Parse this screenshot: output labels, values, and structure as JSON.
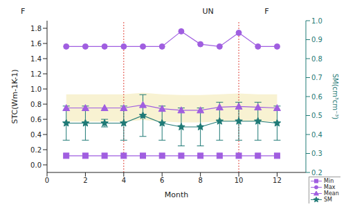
{
  "chart_data": {
    "type": "line",
    "x_label": "Month",
    "y_label": "STC(Wm-1K-1)",
    "y2_label": "SM(cm³cm⁻³)",
    "annotations": [
      "F",
      "UN",
      "F"
    ],
    "x": [
      1,
      2,
      3,
      4,
      5,
      6,
      7,
      8,
      9,
      10,
      11,
      12
    ],
    "xlim": [
      0,
      13.5
    ],
    "xticks": [
      0,
      2,
      4,
      6,
      8,
      10,
      12
    ],
    "ylim": [
      -0.1,
      1.9
    ],
    "yticks": [
      {
        "value": 0,
        "label": "0.0"
      },
      0.2,
      0.4,
      0.6,
      0.8,
      {
        "value": 1,
        "label": "1.0"
      },
      1.2,
      1.4,
      1.6,
      1.8
    ],
    "y2lim": [
      0.2,
      1.0
    ],
    "y2ticks": [
      0.2,
      0.3,
      0.4,
      0.5,
      0.6,
      0.7,
      0.8,
      0.9,
      {
        "value": 1,
        "label": "1.0"
      }
    ],
    "grid": false,
    "legend": "bottom right",
    "vlines": {
      "x": [
        4,
        10
      ],
      "color": "#e0453c",
      "line_style": "dotted"
    },
    "series": [
      {
        "name": "Min",
        "color": "#a05ee0",
        "marker": "square",
        "values": [
          0.12,
          0.12,
          0.12,
          0.12,
          0.12,
          0.12,
          0.12,
          0.12,
          0.12,
          0.12,
          0.12,
          0.12
        ]
      },
      {
        "name": "Max",
        "color": "#a05ee0",
        "marker": "circle",
        "values": [
          1.56,
          1.56,
          1.56,
          1.56,
          1.56,
          1.56,
          1.76,
          1.59,
          1.56,
          1.74,
          1.56,
          1.56
        ]
      },
      {
        "name": "Mean",
        "color": "#a05ee0",
        "marker": "triangle",
        "values": [
          0.75,
          0.75,
          0.75,
          0.75,
          0.79,
          0.74,
          0.72,
          0.72,
          0.76,
          0.77,
          0.76,
          0.75
        ],
        "band_lower": [
          0.57,
          0.57,
          0.57,
          0.57,
          0.59,
          0.57,
          0.56,
          0.56,
          0.57,
          0.58,
          0.57,
          0.57
        ],
        "band_upper": [
          0.93,
          0.93,
          0.93,
          0.93,
          0.95,
          0.93,
          0.92,
          0.92,
          0.93,
          0.94,
          0.93,
          0.93
        ],
        "band_color": "#f8f2d2"
      },
      {
        "name": "SM",
        "color": "#1f7a76",
        "marker": "star",
        "axis": "y2",
        "values": [
          0.46,
          0.46,
          0.46,
          0.46,
          0.5,
          0.46,
          0.44,
          0.44,
          0.47,
          0.47,
          0.47,
          0.46
        ],
        "error": [
          0.09,
          0.09,
          0.02,
          0.09,
          0.11,
          0.09,
          0.1,
          0.1,
          0.1,
          0.1,
          0.1,
          0.09
        ]
      }
    ]
  }
}
